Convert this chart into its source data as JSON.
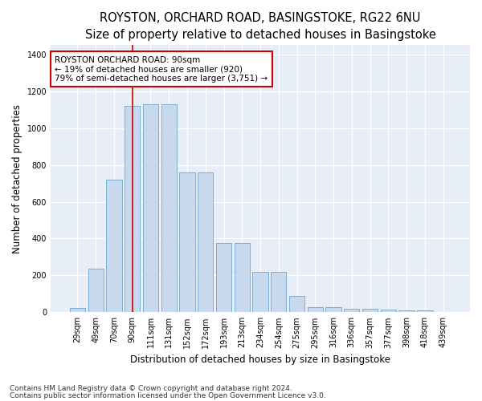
{
  "title": "ROYSTON, ORCHARD ROAD, BASINGSTOKE, RG22 6NU",
  "subtitle": "Size of property relative to detached houses in Basingstoke",
  "xlabel": "Distribution of detached houses by size in Basingstoke",
  "ylabel": "Number of detached properties",
  "categories": [
    "29sqm",
    "49sqm",
    "70sqm",
    "90sqm",
    "111sqm",
    "131sqm",
    "152sqm",
    "172sqm",
    "193sqm",
    "213sqm",
    "234sqm",
    "254sqm",
    "275sqm",
    "295sqm",
    "316sqm",
    "336sqm",
    "357sqm",
    "377sqm",
    "398sqm",
    "418sqm",
    "439sqm"
  ],
  "values": [
    25,
    235,
    720,
    1120,
    1130,
    1130,
    760,
    760,
    375,
    375,
    220,
    220,
    90,
    28,
    28,
    20,
    20,
    15,
    10,
    10,
    0
  ],
  "bar_color": "#c9d9ed",
  "bar_edge_color": "#7bafd4",
  "highlight_bar_index": 3,
  "highlight_line_color": "#cc0000",
  "annotation_text": "ROYSTON ORCHARD ROAD: 90sqm\n← 19% of detached houses are smaller (920)\n79% of semi-detached houses are larger (3,751) →",
  "annotation_box_color": "#ffffff",
  "annotation_box_edge_color": "#cc0000",
  "ylim": [
    0,
    1450
  ],
  "yticks": [
    0,
    200,
    400,
    600,
    800,
    1000,
    1200,
    1400
  ],
  "footnote1": "Contains HM Land Registry data © Crown copyright and database right 2024.",
  "footnote2": "Contains public sector information licensed under the Open Government Licence v3.0.",
  "fig_bg_color": "#ffffff",
  "plot_bg_color": "#e8eef7",
  "title_fontsize": 10.5,
  "subtitle_fontsize": 9.5,
  "axis_label_fontsize": 8.5,
  "tick_fontsize": 7,
  "footnote_fontsize": 6.5,
  "annotation_fontsize": 7.5
}
